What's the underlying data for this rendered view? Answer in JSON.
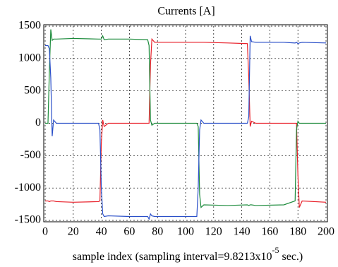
{
  "chart_data": {
    "type": "line",
    "title": "Currents [A]",
    "x_label": {
      "text": "sample index (sampling interval=9.8213x10",
      "superscript": "-5",
      "suffix": " sec.)"
    },
    "x": [
      0,
      2,
      3,
      4,
      5,
      6,
      8,
      20,
      38,
      39,
      40,
      41,
      42,
      45,
      60,
      73,
      74,
      75,
      76,
      78,
      100,
      108,
      109,
      110,
      111,
      113,
      130,
      144,
      145,
      146,
      147,
      150,
      170,
      178,
      179,
      180,
      181,
      183,
      200
    ],
    "series": [
      {
        "color": "#e8202a",
        "values": [
          -1200,
          -1200,
          -1210,
          -1200,
          -1200,
          -1200,
          -1210,
          -1220,
          -1210,
          -1200,
          -300,
          50,
          -50,
          0,
          0,
          0,
          0,
          900,
          1300,
          1250,
          1250,
          1250,
          1250,
          1250,
          1250,
          1250,
          1240,
          1230,
          700,
          -50,
          30,
          0,
          0,
          0,
          0,
          -800,
          -1300,
          -1200,
          -1220
        ]
      },
      {
        "color": "#1a8a3a",
        "values": [
          0,
          0,
          800,
          1450,
          1280,
          1300,
          1300,
          1310,
          1300,
          1300,
          1300,
          1350,
          1290,
          1300,
          1300,
          1290,
          1200,
          50,
          -30,
          0,
          0,
          0,
          -50,
          -1100,
          -1300,
          -1260,
          -1270,
          -1260,
          -1270,
          -1260,
          -1260,
          -1270,
          -1260,
          -1200,
          -100,
          30,
          0,
          0,
          0
        ]
      },
      {
        "color": "#2a4fc8",
        "values": [
          1200,
          1200,
          1150,
          700,
          -200,
          50,
          0,
          0,
          0,
          -100,
          -1000,
          -1400,
          -1440,
          -1430,
          -1440,
          -1440,
          -1480,
          -1400,
          -1430,
          -1440,
          -1440,
          -1440,
          -1000,
          -100,
          50,
          0,
          0,
          0,
          100,
          1350,
          1260,
          1250,
          1250,
          1240,
          1250,
          1230,
          1240,
          1250,
          1240
        ]
      }
    ],
    "xlim": [
      0,
      200
    ],
    "xticks": [
      0,
      20,
      40,
      60,
      80,
      100,
      120,
      140,
      160,
      180,
      200
    ],
    "ylim": [
      -1500,
      1500
    ],
    "yticks": [
      -1500,
      -1000,
      -500,
      0,
      500,
      1000,
      1500
    ],
    "grid": true
  }
}
